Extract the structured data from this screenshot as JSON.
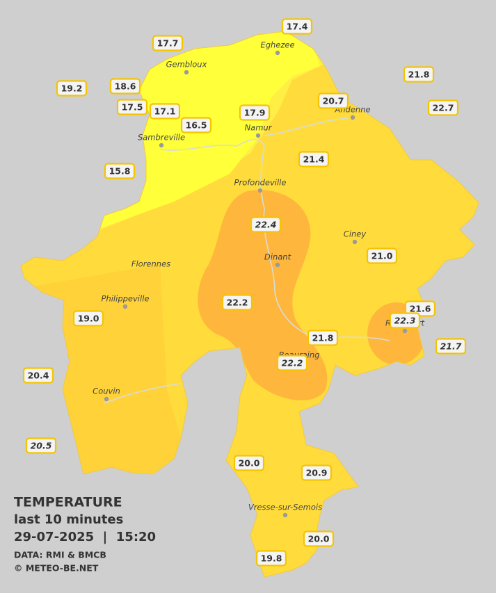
{
  "map": {
    "title": "TEMPERATURE",
    "subtitle": "last 10 minutes",
    "datetime": "29-07-2025  |  15:20",
    "source": "DATA: RMI & BMCB",
    "credit": "© METEO-BE.NET",
    "towns": [
      {
        "name": "Eghezee"
      },
      {
        "name": "Gembloux"
      },
      {
        "name": "Andenne"
      },
      {
        "name": "Namur"
      },
      {
        "name": "Sambreville"
      },
      {
        "name": "Profondeville"
      },
      {
        "name": "Ciney"
      },
      {
        "name": "Florennes"
      },
      {
        "name": "Dinant"
      },
      {
        "name": "Philippeville"
      },
      {
        "name": "Beauraing"
      },
      {
        "name": "Rochefort"
      },
      {
        "name": "Couvin"
      },
      {
        "name": "Vresse-sur-Semois"
      }
    ],
    "stations": [
      {
        "value": "17.4"
      },
      {
        "value": "17.7"
      },
      {
        "value": "21.8"
      },
      {
        "value": "19.2"
      },
      {
        "value": "18.6"
      },
      {
        "value": "20.7"
      },
      {
        "value": "22.7"
      },
      {
        "value": "17.5"
      },
      {
        "value": "17.1"
      },
      {
        "value": "17.9"
      },
      {
        "value": "16.5"
      },
      {
        "value": "21.4"
      },
      {
        "value": "15.8"
      },
      {
        "value": "22.4",
        "italic": true
      },
      {
        "value": "21.0"
      },
      {
        "value": "22.2"
      },
      {
        "value": "21.6"
      },
      {
        "value": "19.0"
      },
      {
        "value": "22.3",
        "italic": true
      },
      {
        "value": "21.8"
      },
      {
        "value": "21.7",
        "italic": true
      },
      {
        "value": "22.2",
        "italic": true
      },
      {
        "value": "20.4"
      },
      {
        "value": "20.5",
        "italic": true
      },
      {
        "value": "20.0"
      },
      {
        "value": "20.9"
      },
      {
        "value": "20.0"
      },
      {
        "value": "19.8"
      }
    ]
  }
}
